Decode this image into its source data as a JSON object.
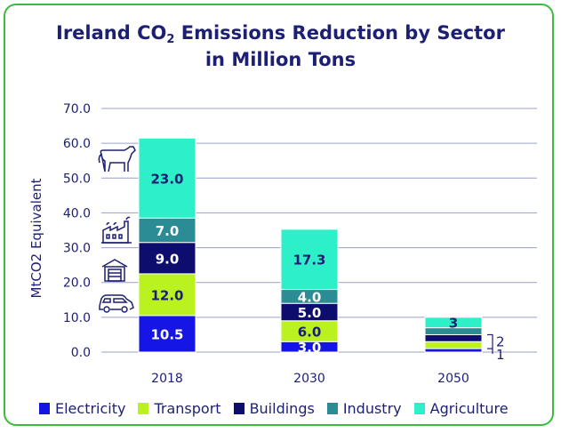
{
  "chart_data": {
    "type": "bar",
    "stacked": true,
    "title_line1_pre": "Ireland CO",
    "title_sub": "2",
    "title_line1_post": " Emissions Reduction by Sector",
    "title_line2": "in Million Tons",
    "ylabel": "MtCO2 Equivalent",
    "xlabel": "",
    "ylim": [
      0,
      70
    ],
    "yticks": [
      "0.0",
      "10.0",
      "20.0",
      "30.0",
      "40.0",
      "50.0",
      "60.0",
      "70.0"
    ],
    "grid": true,
    "legend_position": "bottom",
    "categories": [
      "2018",
      "2030",
      "2050"
    ],
    "series": [
      {
        "name": "Electricity",
        "color": "#1515e6",
        "label_color": "#ffffff",
        "values": [
          10.5,
          3.0,
          1
        ],
        "labels": [
          "10.5",
          "3.0",
          ""
        ]
      },
      {
        "name": "Transport",
        "color": "#b9f21f",
        "label_color": "#1c1f73",
        "values": [
          12.0,
          6.0,
          2
        ],
        "labels": [
          "12.0",
          "6.0",
          ""
        ]
      },
      {
        "name": "Buildings",
        "color": "#0d0d6e",
        "label_color": "#ffffff",
        "values": [
          9.0,
          5.0,
          2
        ],
        "labels": [
          "9.0",
          "5.0",
          ""
        ]
      },
      {
        "name": "Industry",
        "color": "#2b8c96",
        "label_color": "#ffffff",
        "values": [
          7.0,
          4.0,
          2
        ],
        "labels": [
          "7.0",
          "4.0",
          ""
        ]
      },
      {
        "name": "Agriculture",
        "color": "#2ef0c8",
        "label_color": "#1c1f73",
        "values": [
          23.0,
          17.3,
          3
        ],
        "labels": [
          "23.0",
          "17.3",
          "3"
        ]
      }
    ],
    "annotations": [
      "2",
      "1"
    ],
    "sector_icons": [
      "car-icon",
      "house-icon",
      "factory-icon",
      "cow-icon"
    ]
  },
  "colors": {
    "title": "#1c1f73",
    "frame": "#3dbb3d",
    "grid": "#9aa0c4"
  }
}
